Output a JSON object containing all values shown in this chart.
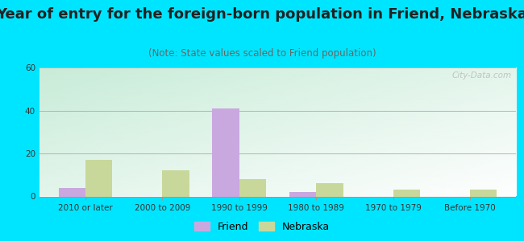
{
  "title": "Year of entry for the foreign-born population in Friend, Nebraska",
  "subtitle": "(Note: State values scaled to Friend population)",
  "categories": [
    "2010 or later",
    "2000 to 2009",
    "1990 to 1999",
    "1980 to 1989",
    "1970 to 1979",
    "Before 1970"
  ],
  "friend_values": [
    4,
    0,
    41,
    2,
    0,
    0
  ],
  "nebraska_values": [
    17,
    12,
    8,
    6,
    3,
    3
  ],
  "friend_color": "#c9a8e0",
  "nebraska_color": "#c8d89a",
  "ylim": [
    0,
    60
  ],
  "yticks": [
    0,
    20,
    40,
    60
  ],
  "bar_width": 0.35,
  "bg_outer": "#00e5ff",
  "title_fontsize": 13,
  "subtitle_fontsize": 8.5,
  "tick_fontsize": 7.5,
  "legend_fontsize": 9
}
